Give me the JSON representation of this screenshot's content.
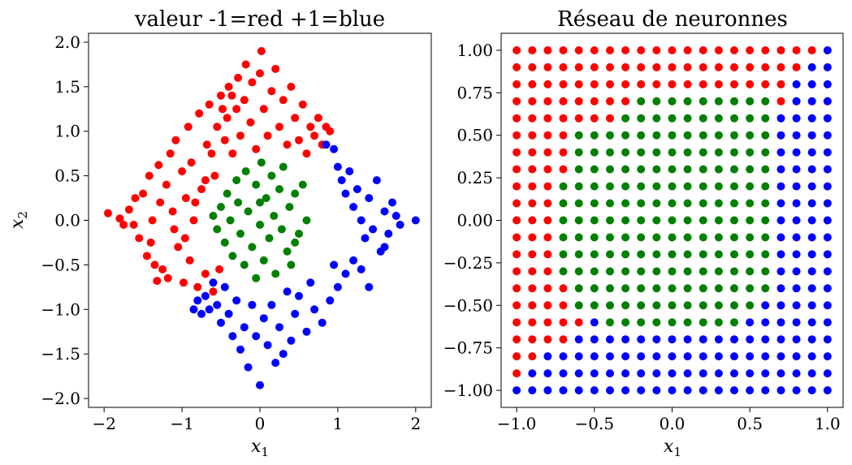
{
  "colors": {
    "red": "#ff0000",
    "green": "#008000",
    "blue": "#0000ff"
  },
  "chart_data": [
    {
      "type": "scatter",
      "title": "valeur -1=red +1=blue",
      "xlabel": "x",
      "xlabel_sub": "1",
      "ylabel": "x",
      "ylabel_sub": "2",
      "xlim": [
        -2.2,
        2.2
      ],
      "ylim": [
        -2.1,
        2.1
      ],
      "xticks": [
        -2,
        -1,
        0,
        1,
        2
      ],
      "yticks": [
        -2.0,
        -1.5,
        -1.0,
        -0.5,
        0.0,
        0.5,
        1.0,
        1.5,
        2.0
      ],
      "xtick_labels": [
        "−2",
        "−1",
        "0",
        "1",
        "2"
      ],
      "ytick_labels": [
        "−2.0",
        "−1.5",
        "−1.0",
        "−0.5",
        "0.0",
        "0.5",
        "1.0",
        "1.5",
        "2.0"
      ],
      "grid": false,
      "series": [
        {
          "color": "red",
          "points": [
            [
              -1.95,
              0.08
            ],
            [
              -1.8,
              0.02
            ],
            [
              -1.75,
              -0.05
            ],
            [
              -1.68,
              0.12
            ],
            [
              -1.6,
              0.25
            ],
            [
              -1.55,
              -0.2
            ],
            [
              -1.5,
              0.3
            ],
            [
              -1.45,
              -0.4
            ],
            [
              -1.42,
              0.5
            ],
            [
              -1.38,
              0.0
            ],
            [
              -1.35,
              -0.5
            ],
            [
              -1.3,
              0.62
            ],
            [
              -1.28,
              0.2
            ],
            [
              -1.25,
              -0.55
            ],
            [
              -1.2,
              0.4
            ],
            [
              -1.18,
              -0.65
            ],
            [
              -1.15,
              0.75
            ],
            [
              -1.1,
              -0.1
            ],
            [
              -1.08,
              0.9
            ],
            [
              -1.05,
              -0.3
            ],
            [
              -1.0,
              0.55
            ],
            [
              -0.98,
              -0.7
            ],
            [
              -0.95,
              0.25
            ],
            [
              -0.92,
              1.05
            ],
            [
              -0.9,
              -0.45
            ],
            [
              -0.88,
              0.65
            ],
            [
              -0.85,
              0.0
            ],
            [
              -0.8,
              -0.75
            ],
            [
              -0.78,
              1.2
            ],
            [
              -0.75,
              0.35
            ],
            [
              -0.7,
              -0.6
            ],
            [
              -0.68,
              0.85
            ],
            [
              -0.65,
              1.3
            ],
            [
              -0.6,
              -0.8
            ],
            [
              -0.58,
              0.5
            ],
            [
              -0.55,
              1.05
            ],
            [
              -0.52,
              -0.55
            ],
            [
              -0.5,
              1.4
            ],
            [
              -0.45,
              0.9
            ],
            [
              -0.42,
              1.15
            ],
            [
              -0.4,
              1.5
            ],
            [
              -0.35,
              0.75
            ],
            [
              -0.3,
              1.25
            ],
            [
              -0.28,
              1.6
            ],
            [
              -0.25,
              0.95
            ],
            [
              -0.2,
              1.35
            ],
            [
              -0.18,
              1.75
            ],
            [
              -0.12,
              1.1
            ],
            [
              -0.1,
              1.55
            ],
            [
              -0.05,
              0.8
            ],
            [
              0.0,
              1.65
            ],
            [
              0.02,
              1.9
            ],
            [
              0.05,
              1.25
            ],
            [
              0.1,
              0.95
            ],
            [
              0.15,
              1.45
            ],
            [
              0.2,
              1.7
            ],
            [
              0.25,
              1.05
            ],
            [
              0.3,
              1.35
            ],
            [
              0.35,
              0.85
            ],
            [
              0.4,
              1.5
            ],
            [
              0.45,
              1.15
            ],
            [
              0.5,
              0.9
            ],
            [
              0.55,
              1.3
            ],
            [
              0.6,
              0.75
            ],
            [
              0.65,
              1.05
            ],
            [
              0.7,
              0.95
            ],
            [
              0.75,
              1.15
            ],
            [
              0.8,
              0.85
            ],
            [
              0.85,
              1.05
            ],
            [
              0.9,
              1.0
            ],
            [
              -1.62,
              -0.05
            ],
            [
              -1.4,
              -0.25
            ],
            [
              -1.32,
              -0.68
            ],
            [
              -1.12,
              0.1
            ],
            [
              -0.96,
              -0.2
            ],
            [
              -0.83,
              0.2
            ],
            [
              -0.7,
              0.45
            ],
            [
              -0.62,
              0.75
            ],
            [
              -0.48,
              1.25
            ],
            [
              -0.36,
              1.4
            ]
          ]
        },
        {
          "color": "green",
          "points": [
            [
              -0.6,
              0.05
            ],
            [
              -0.55,
              -0.1
            ],
            [
              -0.5,
              0.15
            ],
            [
              -0.45,
              -0.25
            ],
            [
              -0.42,
              0.3
            ],
            [
              -0.38,
              0.0
            ],
            [
              -0.35,
              -0.4
            ],
            [
              -0.3,
              0.45
            ],
            [
              -0.28,
              0.2
            ],
            [
              -0.25,
              -0.15
            ],
            [
              -0.2,
              -0.5
            ],
            [
              -0.18,
              0.55
            ],
            [
              -0.15,
              0.1
            ],
            [
              -0.1,
              -0.3
            ],
            [
              -0.05,
              0.4
            ],
            [
              0.0,
              -0.05
            ],
            [
              0.02,
              0.65
            ],
            [
              0.05,
              -0.45
            ],
            [
              0.08,
              0.25
            ],
            [
              0.12,
              -0.2
            ],
            [
              0.15,
              0.5
            ],
            [
              0.18,
              0.05
            ],
            [
              0.2,
              -0.6
            ],
            [
              0.25,
              0.35
            ],
            [
              0.28,
              -0.1
            ],
            [
              0.3,
              0.6
            ],
            [
              0.35,
              -0.35
            ],
            [
              0.38,
              0.15
            ],
            [
              0.4,
              -0.5
            ],
            [
              0.45,
              0.3
            ],
            [
              0.5,
              -0.15
            ],
            [
              0.55,
              0.4
            ],
            [
              0.6,
              0.0
            ],
            [
              0.45,
              -0.25
            ],
            [
              -0.05,
              -0.65
            ],
            [
              0.0,
              0.2
            ]
          ]
        },
        {
          "color": "blue",
          "points": [
            [
              0.85,
              0.85
            ],
            [
              0.95,
              0.8
            ],
            [
              1.0,
              0.6
            ],
            [
              1.05,
              0.45
            ],
            [
              1.1,
              0.3
            ],
            [
              1.15,
              0.55
            ],
            [
              1.2,
              0.15
            ],
            [
              1.25,
              0.35
            ],
            [
              1.3,
              0.0
            ],
            [
              1.35,
              -0.2
            ],
            [
              1.4,
              0.25
            ],
            [
              1.45,
              -0.1
            ],
            [
              1.5,
              0.45
            ],
            [
              1.55,
              -0.35
            ],
            [
              1.6,
              0.1
            ],
            [
              1.65,
              -0.15
            ],
            [
              1.7,
              0.2
            ],
            [
              1.75,
              0.05
            ],
            [
              1.8,
              -0.05
            ],
            [
              2.0,
              0.0
            ],
            [
              1.2,
              -0.45
            ],
            [
              1.1,
              -0.6
            ],
            [
              1.0,
              -0.75
            ],
            [
              0.95,
              -0.5
            ],
            [
              0.9,
              -0.9
            ],
            [
              0.8,
              -1.15
            ],
            [
              0.7,
              -1.0
            ],
            [
              0.65,
              -0.7
            ],
            [
              0.6,
              -1.25
            ],
            [
              0.5,
              -0.85
            ],
            [
              0.45,
              -1.05
            ],
            [
              0.4,
              -1.35
            ],
            [
              0.35,
              -0.8
            ],
            [
              0.3,
              -1.5
            ],
            [
              0.25,
              -1.2
            ],
            [
              0.2,
              -1.6
            ],
            [
              0.15,
              -0.95
            ],
            [
              0.1,
              -1.4
            ],
            [
              0.05,
              -1.1
            ],
            [
              0.0,
              -1.85
            ],
            [
              -0.05,
              -1.3
            ],
            [
              -0.1,
              -0.95
            ],
            [
              -0.15,
              -1.65
            ],
            [
              -0.2,
              -1.2
            ],
            [
              -0.25,
              -1.45
            ],
            [
              -0.3,
              -0.9
            ],
            [
              -0.35,
              -1.3
            ],
            [
              -0.4,
              -1.05
            ],
            [
              -0.45,
              -0.75
            ],
            [
              -0.5,
              -1.15
            ],
            [
              -0.55,
              -0.95
            ],
            [
              -0.6,
              -0.7
            ],
            [
              -0.65,
              -1.0
            ],
            [
              -0.7,
              -0.85
            ],
            [
              -0.75,
              -1.05
            ],
            [
              -0.8,
              -0.9
            ],
            [
              -0.85,
              -1.0
            ],
            [
              1.3,
              -0.55
            ],
            [
              1.4,
              -0.75
            ],
            [
              1.6,
              -0.3
            ]
          ]
        }
      ]
    },
    {
      "type": "scatter",
      "title": "Réseau de neuronnes",
      "xlabel": "x",
      "xlabel_sub": "1",
      "xlim": [
        -1.1,
        1.1
      ],
      "ylim": [
        -1.1,
        1.1
      ],
      "xticks": [
        -1.0,
        -0.5,
        0.0,
        0.5,
        1.0
      ],
      "yticks": [
        -1.0,
        -0.75,
        -0.5,
        -0.25,
        0.0,
        0.25,
        0.5,
        0.75,
        1.0
      ],
      "xtick_labels": [
        "−1.0",
        "−0.5",
        "0.0",
        "0.5",
        "1.0"
      ],
      "ytick_labels": [
        "−1.00",
        "−0.75",
        "−0.50",
        "−0.25",
        "0.00",
        "0.25",
        "0.50",
        "0.75",
        "1.00"
      ],
      "grid": false,
      "grid_x": [
        -1.0,
        -0.9,
        -0.8,
        -0.7,
        -0.6,
        -0.5,
        -0.4,
        -0.3,
        -0.2,
        -0.1,
        0.0,
        0.1,
        0.2,
        0.3,
        0.4,
        0.5,
        0.6,
        0.7,
        0.8,
        0.9,
        1.0
      ],
      "grid_y": [
        1.0,
        0.9,
        0.8,
        0.7,
        0.6,
        0.5,
        0.4,
        0.3,
        0.2,
        0.1,
        0.0,
        -0.1,
        -0.2,
        -0.3,
        -0.4,
        -0.5,
        -0.6,
        -0.7,
        -0.8,
        -0.9,
        -1.0
      ],
      "class_rows": [
        "RRRRRRRRRRRRRRRRRRRRB",
        "RRRRRRRRRRRRRRRRRRRBB",
        "RRRRRRRRRRRRRRRRRRBBB",
        "RRRRRRRRGGGGGGGGGRBBB",
        "RRRRRRRGGGGGGGGGGBBBB",
        "RRRRGGGGGGGGGGGGGBBBB",
        "RRRRGGGGGGGGGGGGGBBBB",
        "RRRRGGGGGGGGGGGGGBBBB",
        "RRRGGGGGGGGGGGGGGBBBB",
        "RRRGGGGGGGGGGGGGGBBBB",
        "RRRGGGGGGGGGGGGGGBBBB",
        "RRRGGGGGGGGGGGGGGBBBB",
        "RRRGGGGGGGGGGGGGGBBBB",
        "RRRGGGGGGGGGGGGGGBBBB",
        "RRRRGGGGGGGGGGGGGBBBB",
        "RRRRGGGGGGGGGGGGBBBBB",
        "RRRRRBGGGGGGGGGBBBBBB",
        "RRRRBBBBBBBBBBBBBBBBB",
        "RRBBBBBBBBBBBBBBBBBBB",
        "RBBBBBBBBBBBBBBBBBBBB",
        "BBBBBBBBBBBBBBBBBBBBB"
      ]
    }
  ]
}
